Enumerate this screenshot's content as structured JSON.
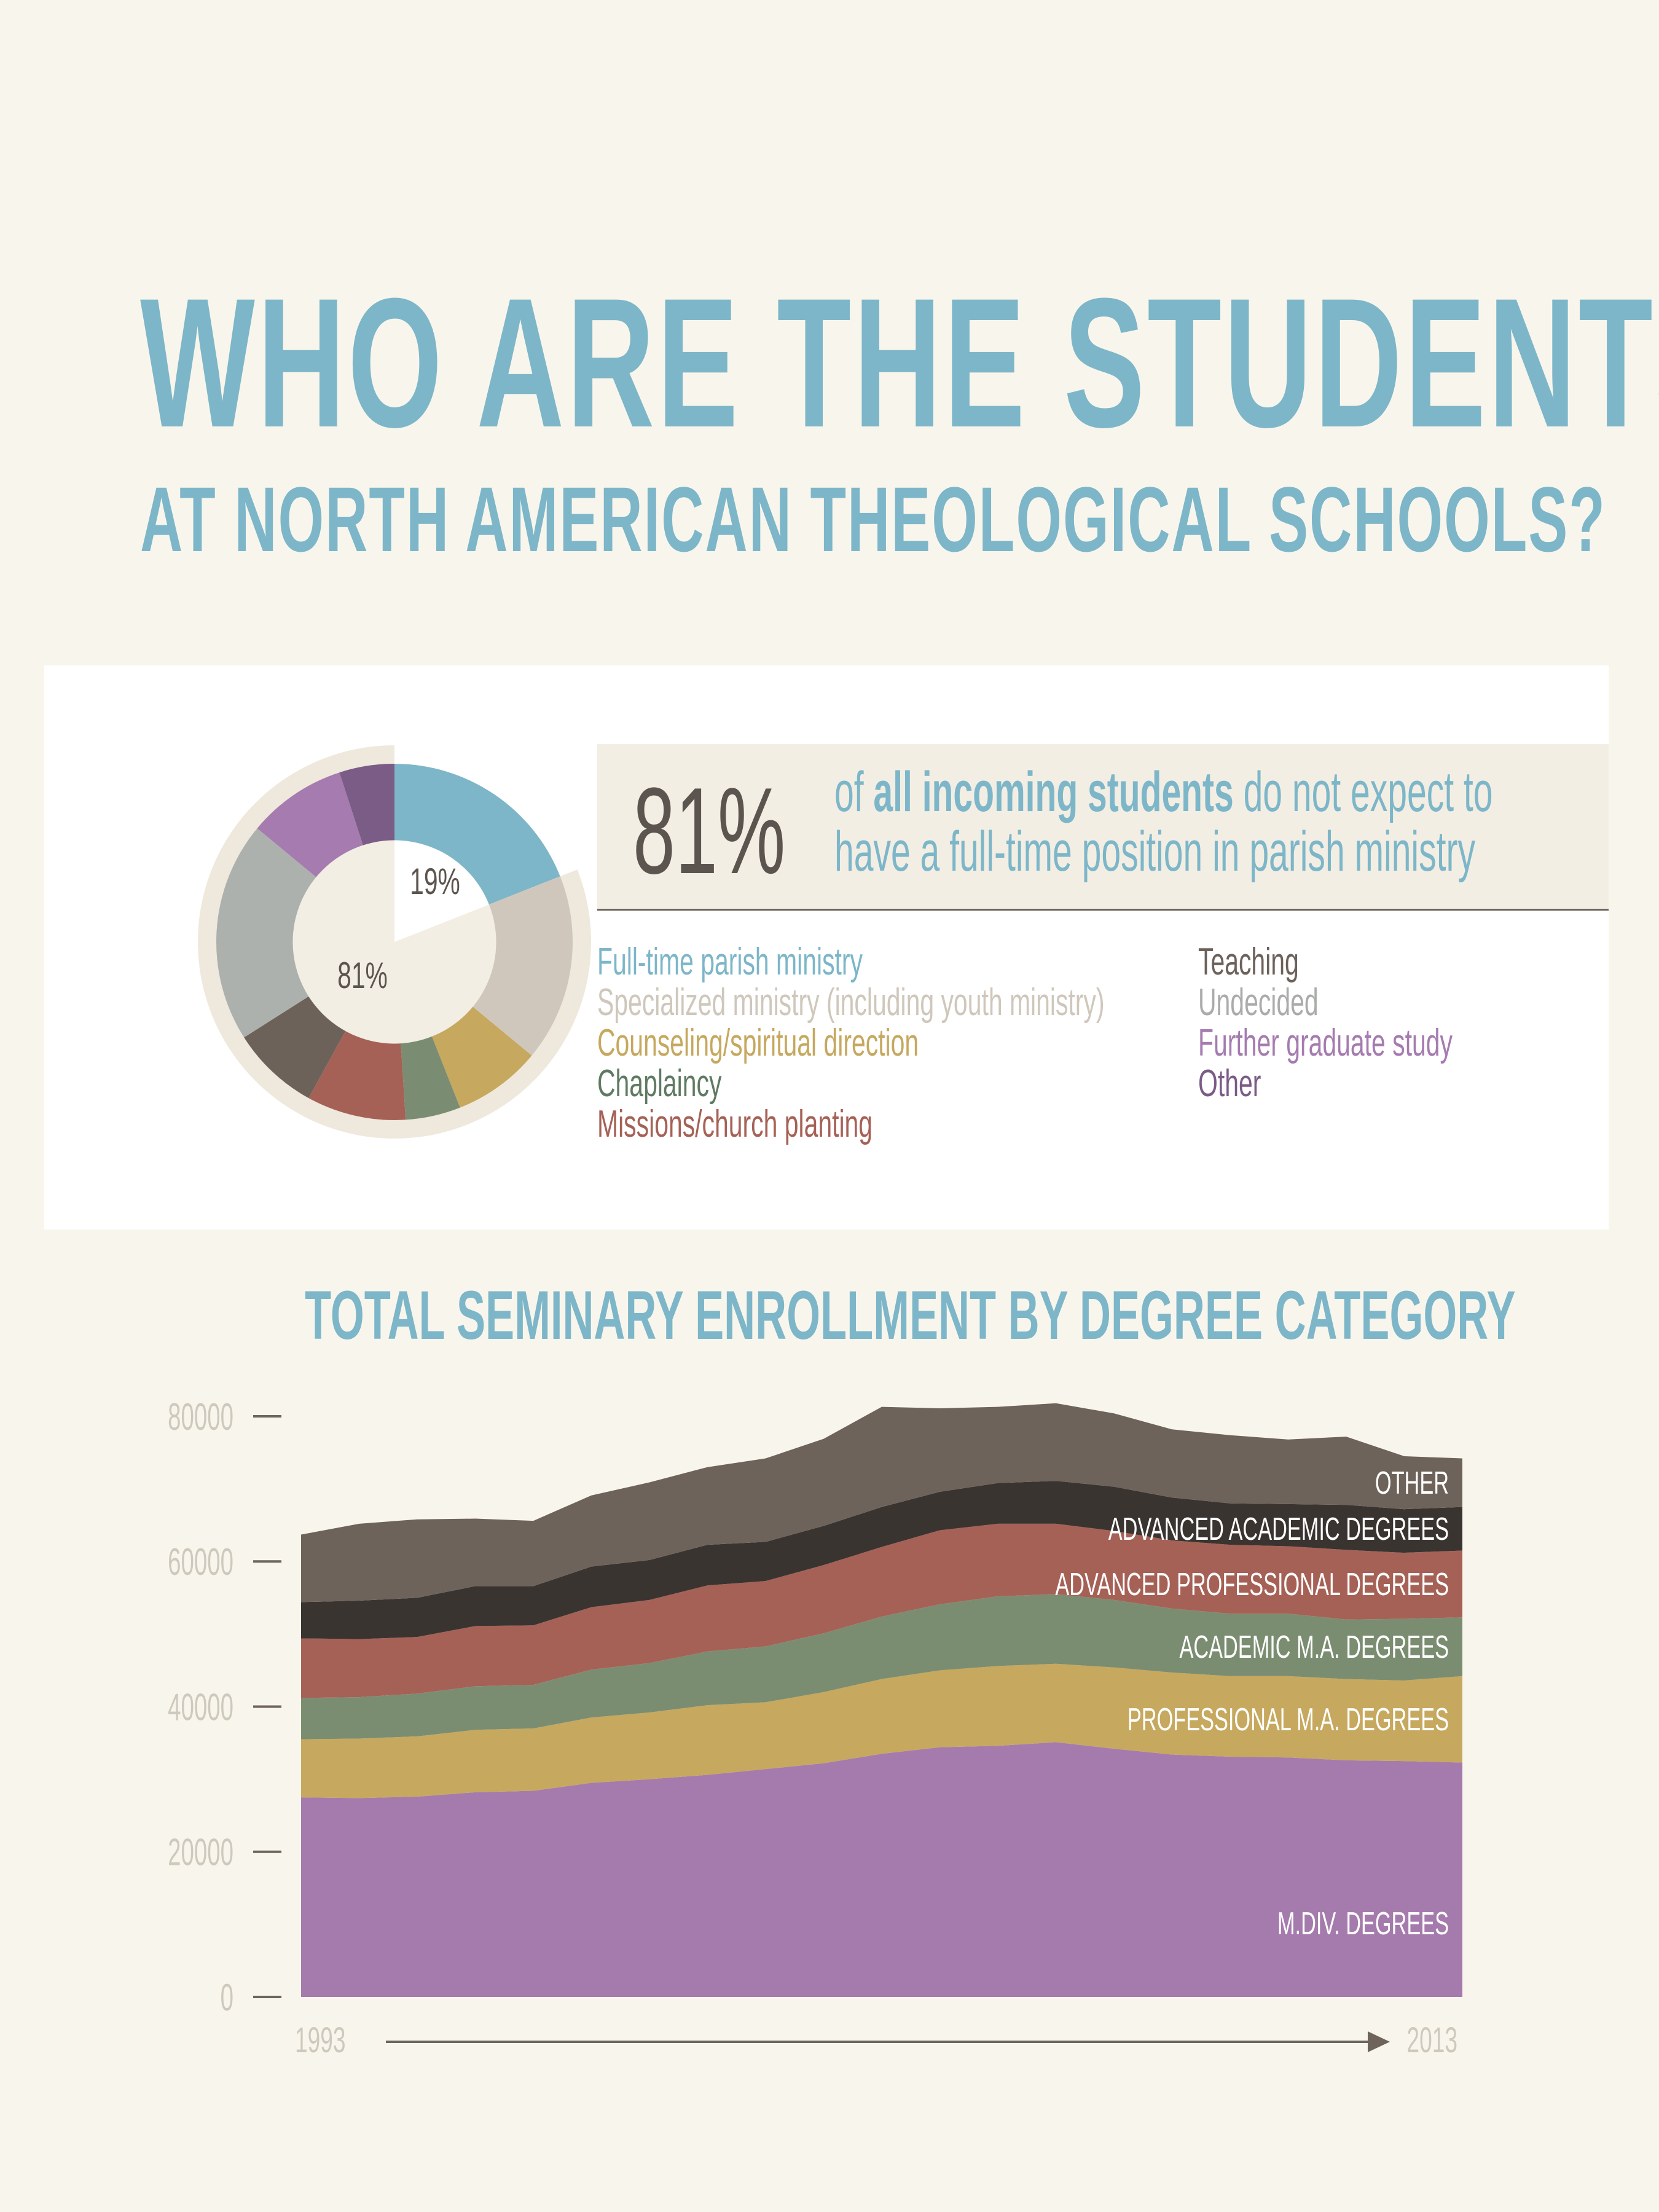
{
  "title": {
    "line1": "WHO ARE THE STUDENTS",
    "line2": "AT NORTH AMERICAN THEOLOGICAL SCHOOLS?"
  },
  "callout": {
    "pct": "81%",
    "pre": "of ",
    "bold": "all incoming students",
    "post": " do not expect to",
    "line2": "have a full-time position in parish ministry"
  },
  "donut": {
    "inner_label_small": "19%",
    "inner_label_large": "81%"
  },
  "legend": {
    "left": [
      {
        "label": "Full-time parish ministry",
        "color": "#7db6c8"
      },
      {
        "label": "Specialized ministry (including youth ministry)",
        "color": "#cfc7bb"
      },
      {
        "label": "Counseling/spiritual direction",
        "color": "#c6a85e"
      },
      {
        "label": "Chaplaincy",
        "color": "#5f7a62"
      },
      {
        "label": "Missions/church  planting",
        "color": "#a66156"
      }
    ],
    "right": [
      {
        "label": "Teaching",
        "color": "#6d625a"
      },
      {
        "label": "Undecided",
        "color": "#a9aca9"
      },
      {
        "label": "Further graduate study",
        "color": "#a57bb0"
      },
      {
        "label": "Other",
        "color": "#7a5c86"
      }
    ]
  },
  "chart_data": [
    {
      "type": "pie",
      "title": "",
      "categories": [
        "Full-time parish ministry",
        "Specialized ministry (including youth ministry)",
        "Counseling/spiritual direction",
        "Chaplaincy",
        "Missions/church  planting",
        "Teaching",
        "Undecided",
        "Further graduate study",
        "Other"
      ],
      "values": [
        19,
        17,
        8,
        5,
        9,
        8,
        20,
        9,
        5
      ],
      "colors": [
        "#7db6c8",
        "#cfc7bb",
        "#c6a85e",
        "#7a8d72",
        "#a66156",
        "#6d625a",
        "#adb1ad",
        "#a57bb0",
        "#7a5c86"
      ],
      "annotations": [
        "19%",
        "81%"
      ]
    },
    {
      "type": "area",
      "title": "TOTAL SEMINARY ENROLLMENT BY DEGREE CATEGORY",
      "xlabel": "",
      "ylabel": "",
      "x": [
        1993,
        1994,
        1995,
        1996,
        1997,
        1998,
        1999,
        2000,
        2001,
        2002,
        2003,
        2004,
        2005,
        2006,
        2007,
        2008,
        2009,
        2010,
        2011,
        2012,
        2013
      ],
      "x_tick_labels": [
        "1993",
        "2013"
      ],
      "y_ticks": [
        0,
        20000,
        40000,
        60000,
        80000
      ],
      "ylim": [
        0,
        80000
      ],
      "stacked": true,
      "grid": false,
      "series": [
        {
          "name": "M.DIV. DEGREES",
          "color": "#a57bad",
          "values": [
            27500,
            27400,
            27600,
            28200,
            28400,
            29500,
            30000,
            30600,
            31400,
            32200,
            33500,
            34400,
            34600,
            35100,
            34200,
            33400,
            33100,
            33000,
            32600,
            32500,
            32300
          ]
        },
        {
          "name": "PROFESSIONAL M.A. DEGREES",
          "color": "#c6a85e",
          "values": [
            8000,
            8200,
            8300,
            8600,
            8600,
            9000,
            9200,
            9600,
            9200,
            9800,
            10300,
            10600,
            11000,
            10800,
            11200,
            11300,
            11100,
            11200,
            11200,
            11100,
            11900
          ]
        },
        {
          "name": "ACADEMIC M.A. DEGREES",
          "color": "#7b8d71",
          "values": [
            5700,
            5700,
            5900,
            6000,
            6000,
            6600,
            6800,
            7400,
            7700,
            8100,
            8600,
            9100,
            9600,
            9600,
            9300,
            8800,
            8600,
            8600,
            8200,
            8500,
            8100
          ]
        },
        {
          "name": "ADVANCED PROFESSIONAL DEGREES",
          "color": "#a66156",
          "values": [
            8200,
            8000,
            7800,
            8300,
            8200,
            8600,
            8700,
            9100,
            9000,
            9400,
            9600,
            10200,
            10000,
            9700,
            9500,
            9400,
            9500,
            9300,
            9600,
            9100,
            9200
          ]
        },
        {
          "name": "ADVANCED ACADEMIC DEGREES",
          "color": "#3a3431",
          "values": [
            5000,
            5300,
            5400,
            5500,
            5400,
            5600,
            5500,
            5600,
            5400,
            5400,
            5500,
            5300,
            5600,
            5900,
            6100,
            5900,
            5700,
            5800,
            6200,
            6000,
            6000
          ]
        },
        {
          "name": "OTHER",
          "color": "#6e635a",
          "values": [
            9300,
            10600,
            10800,
            9300,
            9000,
            9800,
            10700,
            10700,
            11500,
            12000,
            13800,
            11500,
            10500,
            10700,
            10100,
            9400,
            9400,
            8900,
            9400,
            7300,
            6700
          ]
        }
      ]
    }
  ]
}
